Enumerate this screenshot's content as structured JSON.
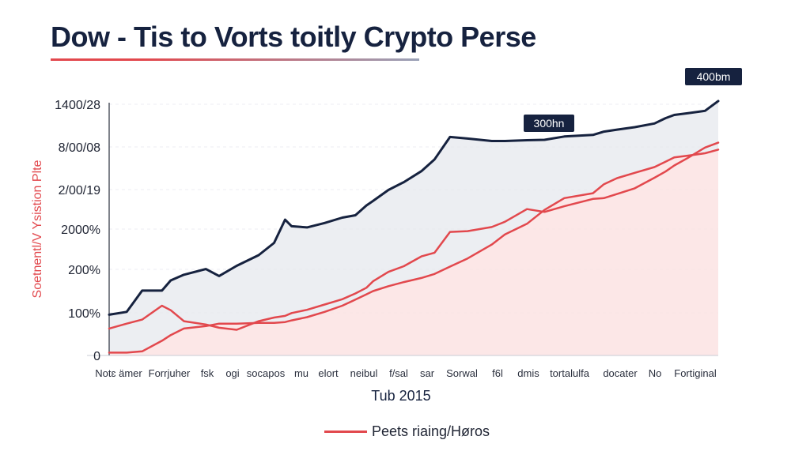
{
  "title": "Dow - Tis to Vorts toitly Crypto Perse",
  "colors": {
    "navy": "#16223f",
    "red": "#e2484d",
    "band_fill": "#e6e8ee",
    "red_fill": "#fbe3e3"
  },
  "legend": {
    "label": "Peets riaing/Høros",
    "placement": "bottom-center"
  },
  "chart_data": {
    "type": "line",
    "title": "Dow - Tis to Vorts toitly Crypto Perse",
    "xlabel": "Tub 2015",
    "ylabel": "Soetnentl/V Ysistion Plte",
    "y_ticks": [
      "0",
      "100%",
      "200%",
      "2000%",
      "2/00/19",
      "8/00/08",
      "1400/28"
    ],
    "ylim": [
      0,
      6.2
    ],
    "grid": true,
    "categories": [
      "Notɛ ämer",
      "Forrjuher",
      "fsk",
      "ogi",
      "socapos",
      "mu",
      "elort",
      "neibul",
      "f/sal",
      "sar",
      "Sorwal",
      "f6l",
      "dmis",
      "tortalulfa",
      "docater",
      "No",
      "Fortiginal"
    ],
    "x": [
      0,
      0.4,
      0.75,
      1.2,
      1.4,
      1.7,
      2.2,
      2.5,
      2.9,
      3.4,
      3.75,
      4.0,
      4.15,
      4.5,
      4.9,
      5.3,
      5.6,
      5.85,
      6.0,
      6.35,
      6.7,
      7.1,
      7.4,
      7.75,
      8.15,
      8.7,
      9.0,
      9.5,
      9.9,
      10.35,
      11.0,
      11.25,
      11.55,
      11.95,
      12.4,
      12.65,
      12.85,
      13.15,
      13.55,
      13.85
    ],
    "series": [
      {
        "name": "",
        "color": "#16223f",
        "role": "upper",
        "values": [
          1.0,
          1.07,
          1.59,
          1.59,
          1.84,
          1.98,
          2.12,
          1.95,
          2.2,
          2.46,
          2.76,
          3.33,
          3.17,
          3.14,
          3.25,
          3.38,
          3.44,
          3.68,
          3.79,
          4.06,
          4.25,
          4.52,
          4.81,
          5.36,
          5.32,
          5.26,
          5.26,
          5.28,
          5.29,
          5.37,
          5.41,
          5.49,
          5.54,
          5.6,
          5.69,
          5.82,
          5.9,
          5.94,
          6.0,
          6.24
        ]
      },
      {
        "name": "",
        "color": "#e2484d",
        "role": "middle",
        "values": [
          0.66,
          0.78,
          0.88,
          1.22,
          1.11,
          0.84,
          0.76,
          0.68,
          0.63,
          0.84,
          0.93,
          0.97,
          1.04,
          1.12,
          1.25,
          1.38,
          1.52,
          1.66,
          1.82,
          2.05,
          2.19,
          2.43,
          2.52,
          3.03,
          3.05,
          3.15,
          3.28,
          3.59,
          3.52,
          3.66,
          3.84,
          3.86,
          3.96,
          4.1,
          4.36,
          4.51,
          4.66,
          4.84,
          5.1,
          5.22
        ]
      },
      {
        "name": "",
        "color": "#e2484d",
        "role": "lower",
        "values": [
          0.07,
          0.07,
          0.1,
          0.36,
          0.5,
          0.66,
          0.72,
          0.78,
          0.78,
          0.8,
          0.8,
          0.82,
          0.86,
          0.94,
          1.07,
          1.22,
          1.37,
          1.5,
          1.58,
          1.7,
          1.8,
          1.9,
          2.0,
          2.18,
          2.38,
          2.72,
          2.97,
          3.23,
          3.57,
          3.86,
          3.98,
          4.2,
          4.35,
          4.48,
          4.62,
          4.75,
          4.86,
          4.9,
          4.96,
          5.05
        ]
      }
    ],
    "annotations": [
      {
        "text": "300hn",
        "x": 9.3,
        "y": 6.0
      },
      {
        "text": "400bm",
        "x": 13.5,
        "y": 7.1
      }
    ]
  }
}
